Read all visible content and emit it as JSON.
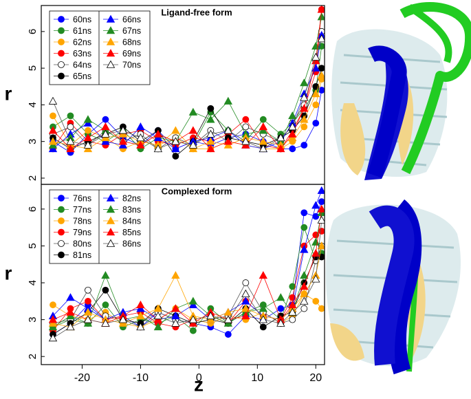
{
  "chart_data": [
    {
      "type": "line",
      "title": "Ligand-free form",
      "y_label": "r",
      "x": [
        -25,
        -22,
        -19,
        -16,
        -13,
        -10,
        -7,
        -4,
        -1,
        2,
        5,
        8,
        11,
        14,
        16,
        18,
        20,
        21
      ],
      "xlim": [
        -27,
        21.5
      ],
      "ylim": [
        1.83,
        6.71
      ],
      "yticks": [
        2,
        3,
        4,
        5,
        6
      ],
      "series": [
        {
          "name": "60ns",
          "color": "#0000ff",
          "marker": "circle",
          "values": [
            3.0,
            2.7,
            3.2,
            3.6,
            3.1,
            2.9,
            3.3,
            2.8,
            3.0,
            2.9,
            3.1,
            3.2,
            3.0,
            2.8,
            2.8,
            2.9,
            3.5,
            4.4
          ]
        },
        {
          "name": "61ns",
          "color": "#228b22",
          "marker": "circle",
          "values": [
            3.4,
            3.7,
            3.2,
            3.0,
            3.3,
            2.8,
            3.1,
            3.0,
            2.9,
            3.8,
            3.3,
            3.0,
            3.6,
            3.2,
            3.5,
            3.9,
            4.4,
            5.6
          ]
        },
        {
          "name": "62ns",
          "color": "#ffa500",
          "marker": "circle",
          "values": [
            3.7,
            2.9,
            3.3,
            3.1,
            2.8,
            3.0,
            2.9,
            3.1,
            2.8,
            2.8,
            3.0,
            2.9,
            2.8,
            2.8,
            3.0,
            3.4,
            4.0,
            4.7
          ]
        },
        {
          "name": "63ns",
          "color": "#ff0000",
          "marker": "circle",
          "values": [
            2.8,
            3.5,
            3.0,
            2.9,
            3.2,
            3.3,
            3.0,
            2.9,
            3.1,
            3.0,
            3.2,
            3.6,
            2.9,
            2.8,
            3.3,
            3.9,
            4.9,
            6.6
          ]
        },
        {
          "name": "64ns",
          "color": "#ffffff",
          "marker": "circle",
          "values": [
            3.2,
            3.4,
            2.9,
            3.3,
            3.0,
            3.2,
            2.8,
            3.1,
            2.9,
            3.3,
            3.0,
            3.4,
            3.2,
            3.0,
            3.5,
            4.0,
            5.2,
            6.0
          ]
        },
        {
          "name": "65ns",
          "color": "#000000",
          "marker": "circle",
          "values": [
            3.1,
            2.8,
            3.0,
            3.2,
            3.4,
            3.0,
            3.3,
            2.6,
            3.0,
            3.9,
            3.1,
            3.0,
            2.9,
            3.1,
            3.3,
            3.7,
            4.5,
            5.0
          ]
        },
        {
          "name": "66ns",
          "color": "#0000ff",
          "marker": "triangle",
          "values": [
            2.8,
            3.2,
            3.5,
            3.0,
            2.9,
            3.4,
            3.1,
            2.8,
            3.0,
            3.1,
            3.3,
            2.9,
            2.8,
            3.0,
            3.5,
            4.3,
            5.0,
            5.9
          ]
        },
        {
          "name": "67ns",
          "color": "#228b22",
          "marker": "triangle",
          "values": [
            2.9,
            3.1,
            3.6,
            3.3,
            3.0,
            2.9,
            3.2,
            3.0,
            3.8,
            3.6,
            4.1,
            3.2,
            3.3,
            3.0,
            3.7,
            4.6,
            5.6,
            6.4
          ]
        },
        {
          "name": "68ns",
          "color": "#ffa500",
          "marker": "triangle",
          "values": [
            3.0,
            2.9,
            2.8,
            3.1,
            3.2,
            3.0,
            2.9,
            3.3,
            2.8,
            3.0,
            2.9,
            3.1,
            3.0,
            2.9,
            3.1,
            3.6,
            4.3,
            4.8
          ]
        },
        {
          "name": "69ns",
          "color": "#ff0000",
          "marker": "triangle",
          "values": [
            3.3,
            2.8,
            3.1,
            3.4,
            3.0,
            2.9,
            3.2,
            3.0,
            3.3,
            2.8,
            3.0,
            2.9,
            3.4,
            2.8,
            3.2,
            3.9,
            5.2,
            6.6
          ]
        },
        {
          "name": "70ns",
          "color": "#ffffff",
          "marker": "triangle",
          "values": [
            4.1,
            3.0,
            2.9,
            3.2,
            3.3,
            3.1,
            2.8,
            3.0,
            2.9,
            3.2,
            3.3,
            3.0,
            2.8,
            3.1,
            3.4,
            4.2,
            5.3,
            5.8
          ]
        }
      ]
    },
    {
      "type": "line",
      "title": "Complexed form",
      "y_label": "r",
      "x_label": "z",
      "x": [
        -25,
        -22,
        -19,
        -16,
        -13,
        -10,
        -7,
        -4,
        -1,
        2,
        5,
        8,
        11,
        14,
        16,
        18,
        20,
        21
      ],
      "xlim": [
        -27,
        21.5
      ],
      "xticks": [
        -20,
        -10,
        0,
        10,
        20
      ],
      "ylim": [
        1.78,
        6.67
      ],
      "yticks": [
        2,
        3,
        4,
        5,
        6
      ],
      "series": [
        {
          "name": "76ns",
          "color": "#0000ff",
          "marker": "circle",
          "values": [
            2.6,
            2.9,
            3.4,
            3.0,
            3.1,
            2.8,
            3.2,
            3.0,
            2.9,
            2.8,
            2.6,
            3.1,
            3.0,
            3.3,
            3.4,
            5.9,
            5.8,
            6.2
          ]
        },
        {
          "name": "77ns",
          "color": "#228b22",
          "marker": "circle",
          "values": [
            2.8,
            3.0,
            2.9,
            3.4,
            2.8,
            3.0,
            2.9,
            3.1,
            2.7,
            3.3,
            2.9,
            3.2,
            3.4,
            3.0,
            3.9,
            5.5,
            4.6,
            4.8
          ]
        },
        {
          "name": "78ns",
          "color": "#ffa500",
          "marker": "circle",
          "values": [
            3.4,
            3.1,
            3.0,
            3.2,
            2.9,
            2.8,
            3.0,
            3.3,
            3.0,
            2.9,
            3.1,
            3.0,
            3.2,
            2.9,
            3.1,
            3.7,
            3.5,
            3.3
          ]
        },
        {
          "name": "79ns",
          "color": "#ff0000",
          "marker": "circle",
          "values": [
            2.7,
            3.3,
            3.5,
            3.0,
            3.1,
            3.2,
            2.9,
            2.8,
            3.0,
            3.1,
            2.9,
            3.5,
            3.1,
            3.0,
            3.6,
            5.0,
            5.3,
            5.4
          ]
        },
        {
          "name": "80ns",
          "color": "#ffffff",
          "marker": "circle",
          "values": [
            2.9,
            3.0,
            3.8,
            3.1,
            3.0,
            2.9,
            3.2,
            3.0,
            2.9,
            3.0,
            3.1,
            4.0,
            3.2,
            2.9,
            3.0,
            3.3,
            4.6,
            5.0
          ]
        },
        {
          "name": "81ns",
          "color": "#000000",
          "marker": "circle",
          "values": [
            2.6,
            2.9,
            3.2,
            3.8,
            3.0,
            2.9,
            3.3,
            3.1,
            2.9,
            3.0,
            2.9,
            3.3,
            2.8,
            3.1,
            3.2,
            4.0,
            4.7,
            4.7
          ]
        },
        {
          "name": "82ns",
          "color": "#0000ff",
          "marker": "triangle",
          "values": [
            3.1,
            3.6,
            3.3,
            3.0,
            3.2,
            3.3,
            3.0,
            3.1,
            3.4,
            3.0,
            3.2,
            3.5,
            3.1,
            3.0,
            3.3,
            4.9,
            6.1,
            6.5
          ]
        },
        {
          "name": "83ns",
          "color": "#228b22",
          "marker": "triangle",
          "values": [
            2.8,
            3.1,
            2.9,
            4.2,
            3.0,
            3.1,
            2.8,
            3.3,
            3.5,
            3.1,
            2.9,
            3.2,
            3.3,
            3.6,
            3.2,
            4.2,
            5.1,
            5.9
          ]
        },
        {
          "name": "84ns",
          "color": "#ffa500",
          "marker": "triangle",
          "values": [
            2.9,
            2.8,
            3.2,
            3.0,
            2.9,
            3.1,
            3.3,
            4.2,
            3.1,
            3.0,
            3.2,
            3.3,
            3.1,
            3.0,
            3.3,
            3.7,
            4.2,
            5.0
          ]
        },
        {
          "name": "85ns",
          "color": "#ff0000",
          "marker": "triangle",
          "values": [
            3.0,
            3.2,
            3.0,
            2.9,
            3.1,
            3.4,
            3.0,
            3.3,
            2.9,
            3.2,
            3.0,
            3.1,
            4.2,
            3.0,
            3.4,
            3.9,
            4.8,
            6.0
          ]
        },
        {
          "name": "86ns",
          "color": "#ffffff",
          "marker": "triangle",
          "values": [
            2.5,
            2.8,
            3.0,
            2.9,
            3.0,
            2.8,
            3.1,
            2.9,
            3.0,
            3.1,
            3.0,
            3.7,
            3.0,
            2.9,
            3.2,
            3.5,
            4.1,
            5.7
          ]
        }
      ]
    }
  ]
}
